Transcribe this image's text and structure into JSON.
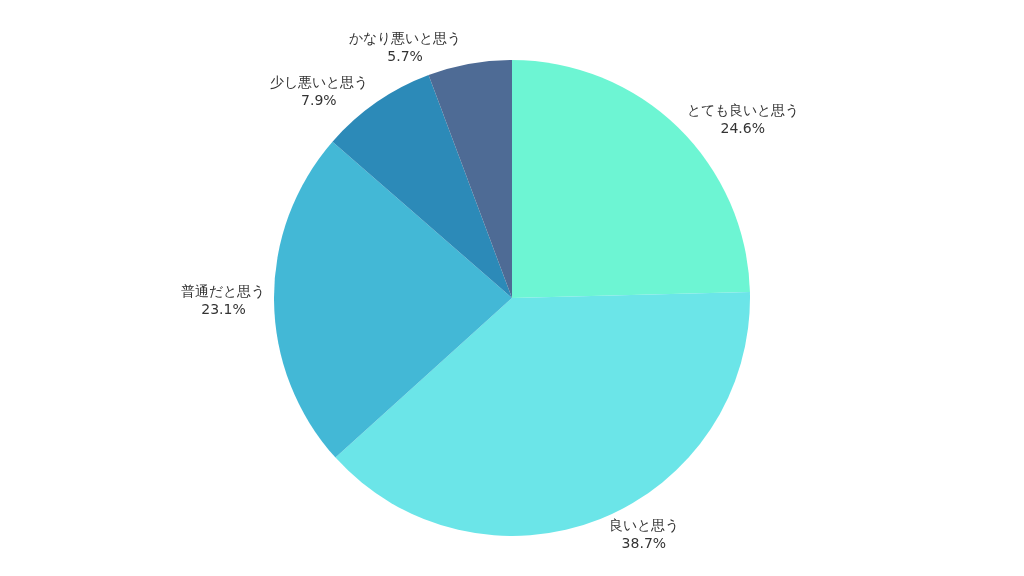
{
  "chart_data": {
    "type": "pie",
    "categories": [
      "とても良いと思う",
      "良いと思う",
      "普通だと思う",
      "少し悪いと思う",
      "かなり悪いと思う"
    ],
    "values": [
      24.6,
      38.7,
      23.1,
      7.9,
      5.7
    ],
    "value_labels": [
      "24.6%",
      "38.7%",
      "23.1%",
      "7.9%",
      "5.7%"
    ],
    "colors": [
      "#6df5d3",
      "#6be5e8",
      "#43b8d6",
      "#2c8ab8",
      "#4e6b95"
    ],
    "legend": false
  }
}
